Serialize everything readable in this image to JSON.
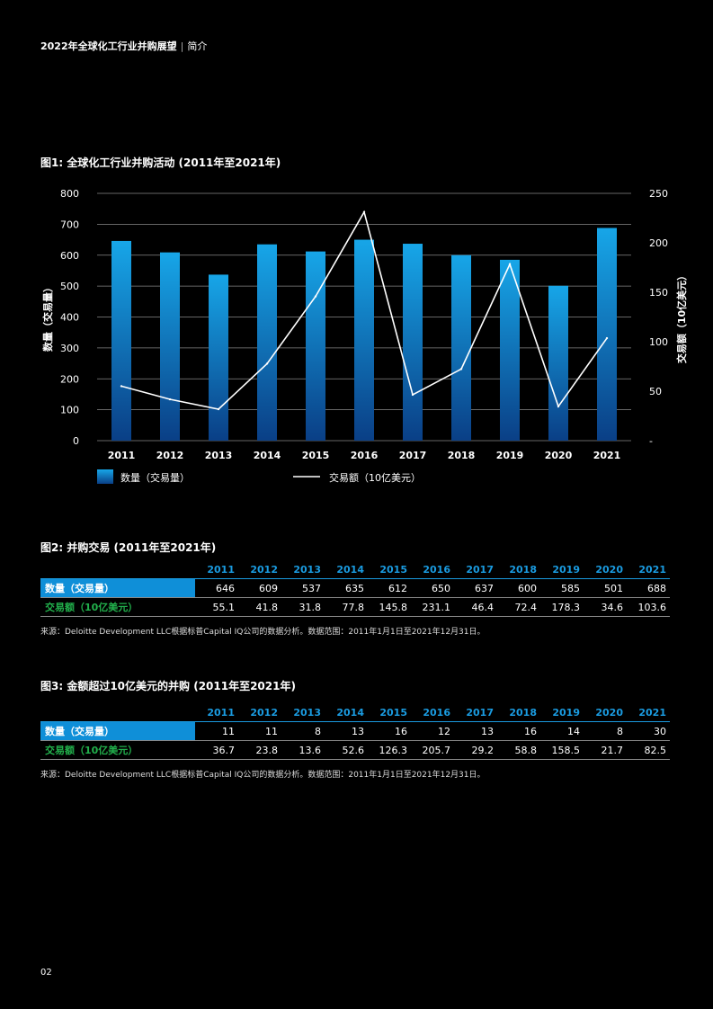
{
  "header": {
    "title": "2022年全球化工行业并购展望",
    "separator": "|",
    "section": "简介"
  },
  "figure1": {
    "title": "图1: 全球化工行业并购活动 (2011年至2021年)",
    "legend": {
      "bar_label": "数量（交易量）",
      "line_label": "交易额（10亿美元）"
    }
  },
  "chart_data": {
    "type": "bar",
    "categories": [
      "2011",
      "2012",
      "2013",
      "2014",
      "2015",
      "2016",
      "2017",
      "2018",
      "2019",
      "2020",
      "2021"
    ],
    "series": [
      {
        "name": "数量（交易量）",
        "type": "bar",
        "axis": "left",
        "values": [
          646,
          609,
          537,
          635,
          612,
          650,
          637,
          600,
          585,
          501,
          688
        ]
      },
      {
        "name": "交易额（10亿美元）",
        "type": "line",
        "axis": "right",
        "values": [
          55.1,
          41.8,
          31.8,
          77.8,
          145.8,
          231.1,
          46.4,
          72.4,
          178.3,
          34.6,
          103.6
        ]
      }
    ],
    "ylabel": "数量（交易量）",
    "ylabel_right": "交易额（10亿美元）",
    "ylim": [
      0,
      800
    ],
    "ylim_right": [
      0,
      250
    ],
    "yticks": [
      "0",
      "100",
      "200",
      "300",
      "400",
      "500",
      "600",
      "700",
      "800"
    ],
    "yticks_right": [
      "-",
      "50",
      "100",
      "150",
      "200",
      "250"
    ],
    "grid": true,
    "legend_position": "bottom-left",
    "colors": {
      "bar_top": "#17a6e8",
      "bar_bottom": "#0a3f86",
      "line": "#ffffff",
      "grid": "#888888"
    }
  },
  "figure2": {
    "title": "图2: 并购交易 (2011年至2021年)",
    "years": [
      "2011",
      "2012",
      "2013",
      "2014",
      "2015",
      "2016",
      "2017",
      "2018",
      "2019",
      "2020",
      "2021"
    ],
    "rows": [
      {
        "label": "数量（交易量）",
        "values": [
          "646",
          "609",
          "537",
          "635",
          "612",
          "650",
          "637",
          "600",
          "585",
          "501",
          "688"
        ]
      },
      {
        "label": "交易额（10亿美元）",
        "values": [
          "55.1",
          "41.8",
          "31.8",
          "77.8",
          "145.8",
          "231.1",
          "46.4",
          "72.4",
          "178.3",
          "34.6",
          "103.6"
        ]
      }
    ],
    "source": "来源：Deloitte Development LLC根据标普Capital IQ公司的数据分析。数据范围：2011年1月1日至2021年12月31日。"
  },
  "figure3": {
    "title": "图3: 金额超过10亿美元的并购 (2011年至2021年)",
    "years": [
      "2011",
      "2012",
      "2013",
      "2014",
      "2015",
      "2016",
      "2017",
      "2018",
      "2019",
      "2020",
      "2021"
    ],
    "rows": [
      {
        "label": "数量（交易量）",
        "values": [
          "11",
          "11",
          "8",
          "13",
          "16",
          "12",
          "13",
          "16",
          "14",
          "8",
          "30"
        ]
      },
      {
        "label": "交易额（10亿美元）",
        "values": [
          "36.7",
          "23.8",
          "13.6",
          "52.6",
          "126.3",
          "205.7",
          "29.2",
          "58.8",
          "158.5",
          "21.7",
          "82.5"
        ]
      }
    ],
    "source": "来源：Deloitte Development LLC根据标普Capital IQ公司的数据分析。数据范围：2011年1月1日至2021年12月31日。"
  },
  "page_number": "02"
}
